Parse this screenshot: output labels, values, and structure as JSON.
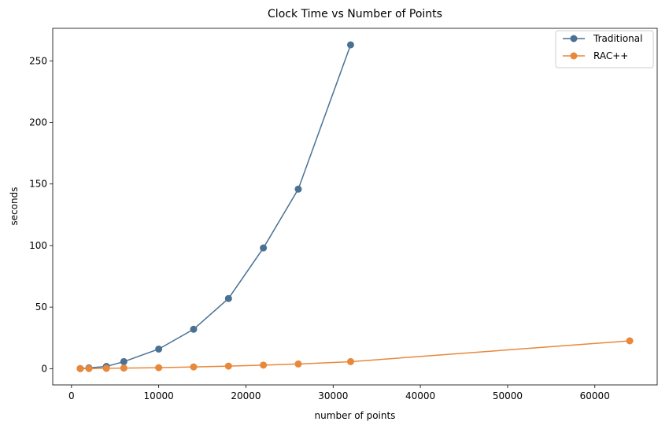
{
  "chart_data": {
    "type": "line",
    "title": "Clock Time vs Number of Points",
    "xlabel": "number of points",
    "ylabel": "seconds",
    "xlim": [
      -2150,
      67150
    ],
    "ylim": [
      -13.2,
      276.4
    ],
    "xticks": [
      0,
      10000,
      20000,
      30000,
      40000,
      50000,
      60000
    ],
    "yticks": [
      0,
      50,
      100,
      150,
      200,
      250
    ],
    "grid": false,
    "legend_position": "top-right",
    "series": [
      {
        "name": "Traditional",
        "color": "#4a7194",
        "x": [
          1000,
          2000,
          4000,
          6000,
          10000,
          14000,
          18000,
          22000,
          26000,
          32000
        ],
        "y": [
          0.1,
          0.6,
          1.8,
          5.7,
          15.9,
          32.0,
          57.0,
          98.0,
          145.8,
          263.0
        ]
      },
      {
        "name": "RAC++",
        "color": "#e8883a",
        "x": [
          1000,
          2000,
          4000,
          6000,
          10000,
          14000,
          18000,
          22000,
          26000,
          32000,
          64000
        ],
        "y": [
          0.05,
          0.1,
          0.3,
          0.5,
          0.8,
          1.4,
          2.1,
          2.9,
          3.8,
          5.7,
          22.6
        ]
      }
    ]
  }
}
